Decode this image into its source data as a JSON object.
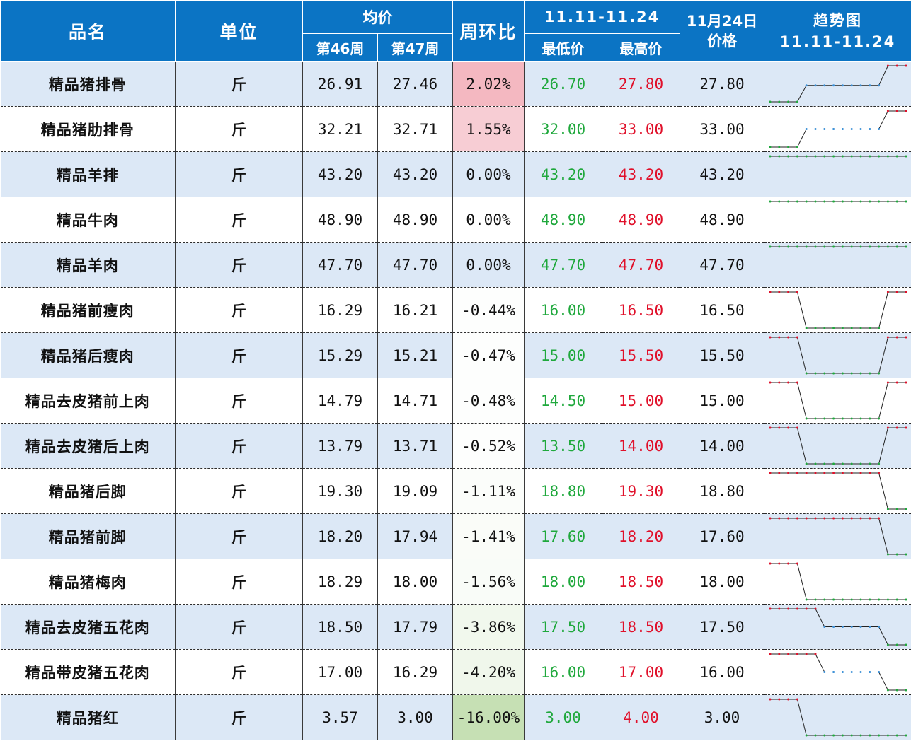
{
  "header": {
    "name": "品名",
    "unit": "单位",
    "avg": "均价",
    "week46": "第46周",
    "week47": "第47周",
    "wow": "周环比",
    "range": "11.11-11.24",
    "min": "最低价",
    "max": "最高价",
    "price_day": "11月24日\n价格",
    "trend": "趋势图\n11.11-11.24"
  },
  "colors": {
    "header_bg": "#0b74c4",
    "row_alt_bg": "#dce8f6",
    "min_color": "#1fa83c",
    "max_color": "#e0102a",
    "up_heat": "#f4c5cc",
    "down_heat": "#c6e0b4"
  },
  "rows": [
    {
      "name": "精品猪排骨",
      "unit": "斤",
      "w46": "26.91",
      "w47": "27.46",
      "wow": "2.02%",
      "wow_num": 2.02,
      "min": "26.70",
      "max": "27.80",
      "price": "27.80",
      "trend": [
        26.7,
        26.7,
        26.7,
        26.7,
        27.2,
        27.2,
        27.2,
        27.2,
        27.2,
        27.2,
        27.2,
        27.2,
        27.2,
        27.8,
        27.8,
        27.8
      ]
    },
    {
      "name": "精品猪肋排骨",
      "unit": "斤",
      "w46": "32.21",
      "w47": "32.71",
      "wow": "1.55%",
      "wow_num": 1.55,
      "min": "32.00",
      "max": "33.00",
      "price": "33.00",
      "trend": [
        32,
        32,
        32,
        32,
        32.5,
        32.5,
        32.5,
        32.5,
        32.5,
        32.5,
        32.5,
        32.5,
        32.5,
        33,
        33,
        33
      ]
    },
    {
      "name": "精品羊排",
      "unit": "斤",
      "w46": "43.20",
      "w47": "43.20",
      "wow": "0.00%",
      "wow_num": 0,
      "min": "43.20",
      "max": "43.20",
      "price": "43.20",
      "trend": [
        43.2,
        43.2,
        43.2,
        43.2,
        43.2,
        43.2,
        43.2,
        43.2,
        43.2,
        43.2,
        43.2,
        43.2,
        43.2,
        43.2,
        43.2,
        43.2
      ]
    },
    {
      "name": "精品牛肉",
      "unit": "斤",
      "w46": "48.90",
      "w47": "48.90",
      "wow": "0.00%",
      "wow_num": 0,
      "min": "48.90",
      "max": "48.90",
      "price": "48.90",
      "trend": [
        48.9,
        48.9,
        48.9,
        48.9,
        48.9,
        48.9,
        48.9,
        48.9,
        48.9,
        48.9,
        48.9,
        48.9,
        48.9,
        48.9,
        48.9,
        48.9
      ]
    },
    {
      "name": "精品羊肉",
      "unit": "斤",
      "w46": "47.70",
      "w47": "47.70",
      "wow": "0.00%",
      "wow_num": 0,
      "min": "47.70",
      "max": "47.70",
      "price": "47.70",
      "trend": [
        47.7,
        47.7,
        47.7,
        47.7,
        47.7,
        47.7,
        47.7,
        47.7,
        47.7,
        47.7,
        47.7,
        47.7,
        47.7,
        47.7,
        47.7,
        47.7
      ]
    },
    {
      "name": "精品猪前瘦肉",
      "unit": "斤",
      "w46": "16.29",
      "w47": "16.21",
      "wow": "-0.44%",
      "wow_num": -0.44,
      "min": "16.00",
      "max": "16.50",
      "price": "16.50",
      "trend": [
        16.5,
        16.5,
        16.5,
        16.5,
        16,
        16,
        16,
        16,
        16,
        16,
        16,
        16,
        16,
        16.5,
        16.5,
        16.5
      ]
    },
    {
      "name": "精品猪后瘦肉",
      "unit": "斤",
      "w46": "15.29",
      "w47": "15.21",
      "wow": "-0.47%",
      "wow_num": -0.47,
      "min": "15.00",
      "max": "15.50",
      "price": "15.50",
      "trend": [
        15.5,
        15.5,
        15.5,
        15.5,
        15,
        15,
        15,
        15,
        15,
        15,
        15,
        15,
        15,
        15.5,
        15.5,
        15.5
      ]
    },
    {
      "name": "精品去皮猪前上肉",
      "unit": "斤",
      "w46": "14.79",
      "w47": "14.71",
      "wow": "-0.48%",
      "wow_num": -0.48,
      "min": "14.50",
      "max": "15.00",
      "price": "15.00",
      "trend": [
        15,
        15,
        15,
        15,
        14.5,
        14.5,
        14.5,
        14.5,
        14.5,
        14.5,
        14.5,
        14.5,
        14.5,
        15,
        15,
        15
      ]
    },
    {
      "name": "精品去皮猪后上肉",
      "unit": "斤",
      "w46": "13.79",
      "w47": "13.71",
      "wow": "-0.52%",
      "wow_num": -0.52,
      "min": "13.50",
      "max": "14.00",
      "price": "14.00",
      "trend": [
        14,
        14,
        14,
        14,
        13.5,
        13.5,
        13.5,
        13.5,
        13.5,
        13.5,
        13.5,
        13.5,
        13.5,
        14,
        14,
        14
      ]
    },
    {
      "name": "精品猪后脚",
      "unit": "斤",
      "w46": "19.30",
      "w47": "19.09",
      "wow": "-1.11%",
      "wow_num": -1.11,
      "min": "18.80",
      "max": "19.30",
      "price": "18.80",
      "trend": [
        19.3,
        19.3,
        19.3,
        19.3,
        19.3,
        19.3,
        19.3,
        19.3,
        19.3,
        19.3,
        19.3,
        19.3,
        19.3,
        18.8,
        18.8,
        18.8
      ]
    },
    {
      "name": "精品猪前脚",
      "unit": "斤",
      "w46": "18.20",
      "w47": "17.94",
      "wow": "-1.41%",
      "wow_num": -1.41,
      "min": "17.60",
      "max": "18.20",
      "price": "17.60",
      "trend": [
        18.2,
        18.2,
        18.2,
        18.2,
        18.2,
        18.2,
        18.2,
        18.2,
        18.2,
        18.2,
        18.2,
        18.2,
        18.2,
        17.6,
        17.6,
        17.6
      ]
    },
    {
      "name": "精品猪梅肉",
      "unit": "斤",
      "w46": "18.29",
      "w47": "18.00",
      "wow": "-1.56%",
      "wow_num": -1.56,
      "min": "18.00",
      "max": "18.50",
      "price": "18.00",
      "trend": [
        18.5,
        18.5,
        18.5,
        18.5,
        18,
        18,
        18,
        18,
        18,
        18,
        18,
        18,
        18,
        18,
        18,
        18
      ]
    },
    {
      "name": "精品去皮猪五花肉",
      "unit": "斤",
      "w46": "18.50",
      "w47": "17.79",
      "wow": "-3.86%",
      "wow_num": -3.86,
      "min": "17.50",
      "max": "18.50",
      "price": "17.50",
      "trend": [
        18.5,
        18.5,
        18.5,
        18.5,
        18.5,
        18.5,
        18,
        18,
        18,
        18,
        18,
        18,
        18,
        17.5,
        17.5,
        17.5
      ]
    },
    {
      "name": "精品带皮猪五花肉",
      "unit": "斤",
      "w46": "17.00",
      "w47": "16.29",
      "wow": "-4.20%",
      "wow_num": -4.2,
      "min": "16.00",
      "max": "17.00",
      "price": "16.00",
      "trend": [
        17,
        17,
        17,
        17,
        17,
        17,
        16.5,
        16.5,
        16.5,
        16.5,
        16.5,
        16.5,
        16.5,
        16,
        16,
        16
      ]
    },
    {
      "name": "精品猪红",
      "unit": "斤",
      "w46": "3.57",
      "w47": "3.00",
      "wow": "-16.00%",
      "wow_num": -16.0,
      "min": "3.00",
      "max": "4.00",
      "price": "3.00",
      "trend": [
        4,
        4,
        4,
        4,
        3,
        3,
        3,
        3,
        3,
        3,
        3,
        3,
        3,
        3,
        3,
        3
      ]
    }
  ]
}
